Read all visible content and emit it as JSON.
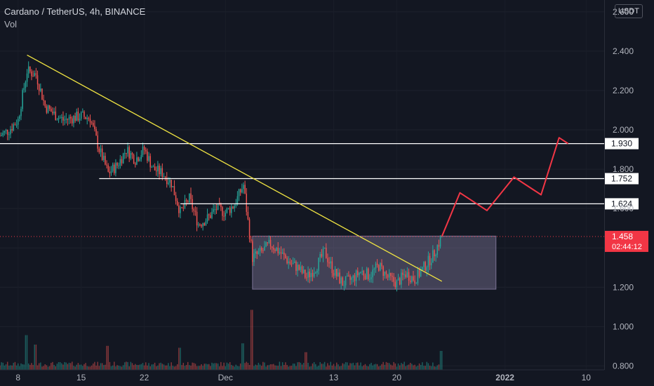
{
  "header": {
    "title": "Cardano / TetherUS, 4h, BINANCE",
    "volume_label": "Vol",
    "currency": "USDT"
  },
  "colors": {
    "background": "#131722",
    "up_candle": "#26a69a",
    "down_candle": "#ef5350",
    "trendline": "#f0e442",
    "projection": "#f23645",
    "range_box": "#9c8fb8",
    "level_line": "#ffffff",
    "axis_text": "#b2b5be",
    "price_tag": "#f23645"
  },
  "chart_data": {
    "type": "candlestick",
    "symbol": "ADA/USDT",
    "timeframe": "4h",
    "exchange": "BINANCE",
    "x_labels": [
      "8",
      "15",
      "22",
      "Dec",
      "13",
      "20",
      "2022",
      "10"
    ],
    "y_ticks": [
      "2.600",
      "2.400",
      "2.200",
      "2.000",
      "1.800",
      "1.600",
      "1.400",
      "1.200",
      "1.000",
      "0.800"
    ],
    "ylim": [
      0.78,
      2.66
    ],
    "x_range_days": [
      "2021-11-06",
      "2022-01-12"
    ],
    "price_path": [
      [
        "2021-11-06",
        1.97
      ],
      [
        "2021-11-07",
        2.0
      ],
      [
        "2021-11-08",
        2.05
      ],
      [
        "2021-11-09",
        2.3
      ],
      [
        "2021-11-10",
        2.28
      ],
      [
        "2021-11-11",
        2.12
      ],
      [
        "2021-11-12",
        2.08
      ],
      [
        "2021-11-13",
        2.05
      ],
      [
        "2021-11-14",
        2.06
      ],
      [
        "2021-11-15",
        2.07
      ],
      [
        "2021-11-16",
        2.06
      ],
      [
        "2021-11-17",
        1.9
      ],
      [
        "2021-11-18",
        1.78
      ],
      [
        "2021-11-19",
        1.82
      ],
      [
        "2021-11-20",
        1.9
      ],
      [
        "2021-11-21",
        1.85
      ],
      [
        "2021-11-22",
        1.9
      ],
      [
        "2021-11-23",
        1.8
      ],
      [
        "2021-11-24",
        1.78
      ],
      [
        "2021-11-25",
        1.73
      ],
      [
        "2021-11-26",
        1.58
      ],
      [
        "2021-11-27",
        1.65
      ],
      [
        "2021-11-28",
        1.52
      ],
      [
        "2021-11-29",
        1.55
      ],
      [
        "2021-11-30",
        1.6
      ],
      [
        "2021-12-01",
        1.58
      ],
      [
        "2021-12-02",
        1.62
      ],
      [
        "2021-12-03",
        1.72
      ],
      [
        "2021-12-04",
        1.35
      ],
      [
        "2021-12-05",
        1.38
      ],
      [
        "2021-12-06",
        1.42
      ],
      [
        "2021-12-07",
        1.38
      ],
      [
        "2021-12-08",
        1.33
      ],
      [
        "2021-12-09",
        1.3
      ],
      [
        "2021-12-10",
        1.25
      ],
      [
        "2021-12-11",
        1.3
      ],
      [
        "2021-12-12",
        1.38
      ],
      [
        "2021-12-13",
        1.28
      ],
      [
        "2021-12-14",
        1.22
      ],
      [
        "2021-12-15",
        1.24
      ],
      [
        "2021-12-16",
        1.28
      ],
      [
        "2021-12-17",
        1.26
      ],
      [
        "2021-12-18",
        1.31
      ],
      [
        "2021-12-19",
        1.25
      ],
      [
        "2021-12-20",
        1.22
      ],
      [
        "2021-12-21",
        1.27
      ],
      [
        "2021-12-22",
        1.24
      ],
      [
        "2021-12-23",
        1.3
      ],
      [
        "2021-12-24",
        1.36
      ],
      [
        "2021-12-25",
        1.458
      ]
    ],
    "volume_ylim": [
      0,
      1
    ],
    "volume_spikes": [
      [
        "2021-11-09",
        0.55
      ],
      [
        "2021-11-10",
        0.4
      ],
      [
        "2021-11-18",
        0.38
      ],
      [
        "2021-11-26",
        0.35
      ],
      [
        "2021-12-04",
        0.95
      ],
      [
        "2021-12-03",
        0.42
      ],
      [
        "2021-12-10",
        0.28
      ],
      [
        "2021-12-25",
        0.3
      ]
    ],
    "trendline": [
      [
        "2021-11-09",
        2.38
      ],
      [
        "2021-12-25",
        1.23
      ]
    ],
    "range_box": {
      "from": "2021-12-04",
      "to": "2021-12-31",
      "top": 1.46,
      "bottom": 1.19
    },
    "horizontal_levels": [
      {
        "value": 1.93,
        "label": "1.930",
        "from": "2021-11-06"
      },
      {
        "value": 1.752,
        "label": "1.752",
        "from": "2021-11-17"
      },
      {
        "value": 1.624,
        "label": "1.624",
        "from": "2021-11-26"
      }
    ],
    "projection_path": [
      [
        "2021-12-25",
        1.458
      ],
      [
        "2021-12-27",
        1.68
      ],
      [
        "2021-12-30",
        1.59
      ],
      [
        "2022-01-02",
        1.76
      ],
      [
        "2022-01-05",
        1.67
      ],
      [
        "2022-01-07",
        1.96
      ],
      [
        "2022-01-08",
        1.93
      ]
    ],
    "current_price": {
      "value": 1.458,
      "label": "1.458",
      "countdown": "02:44:12"
    }
  }
}
